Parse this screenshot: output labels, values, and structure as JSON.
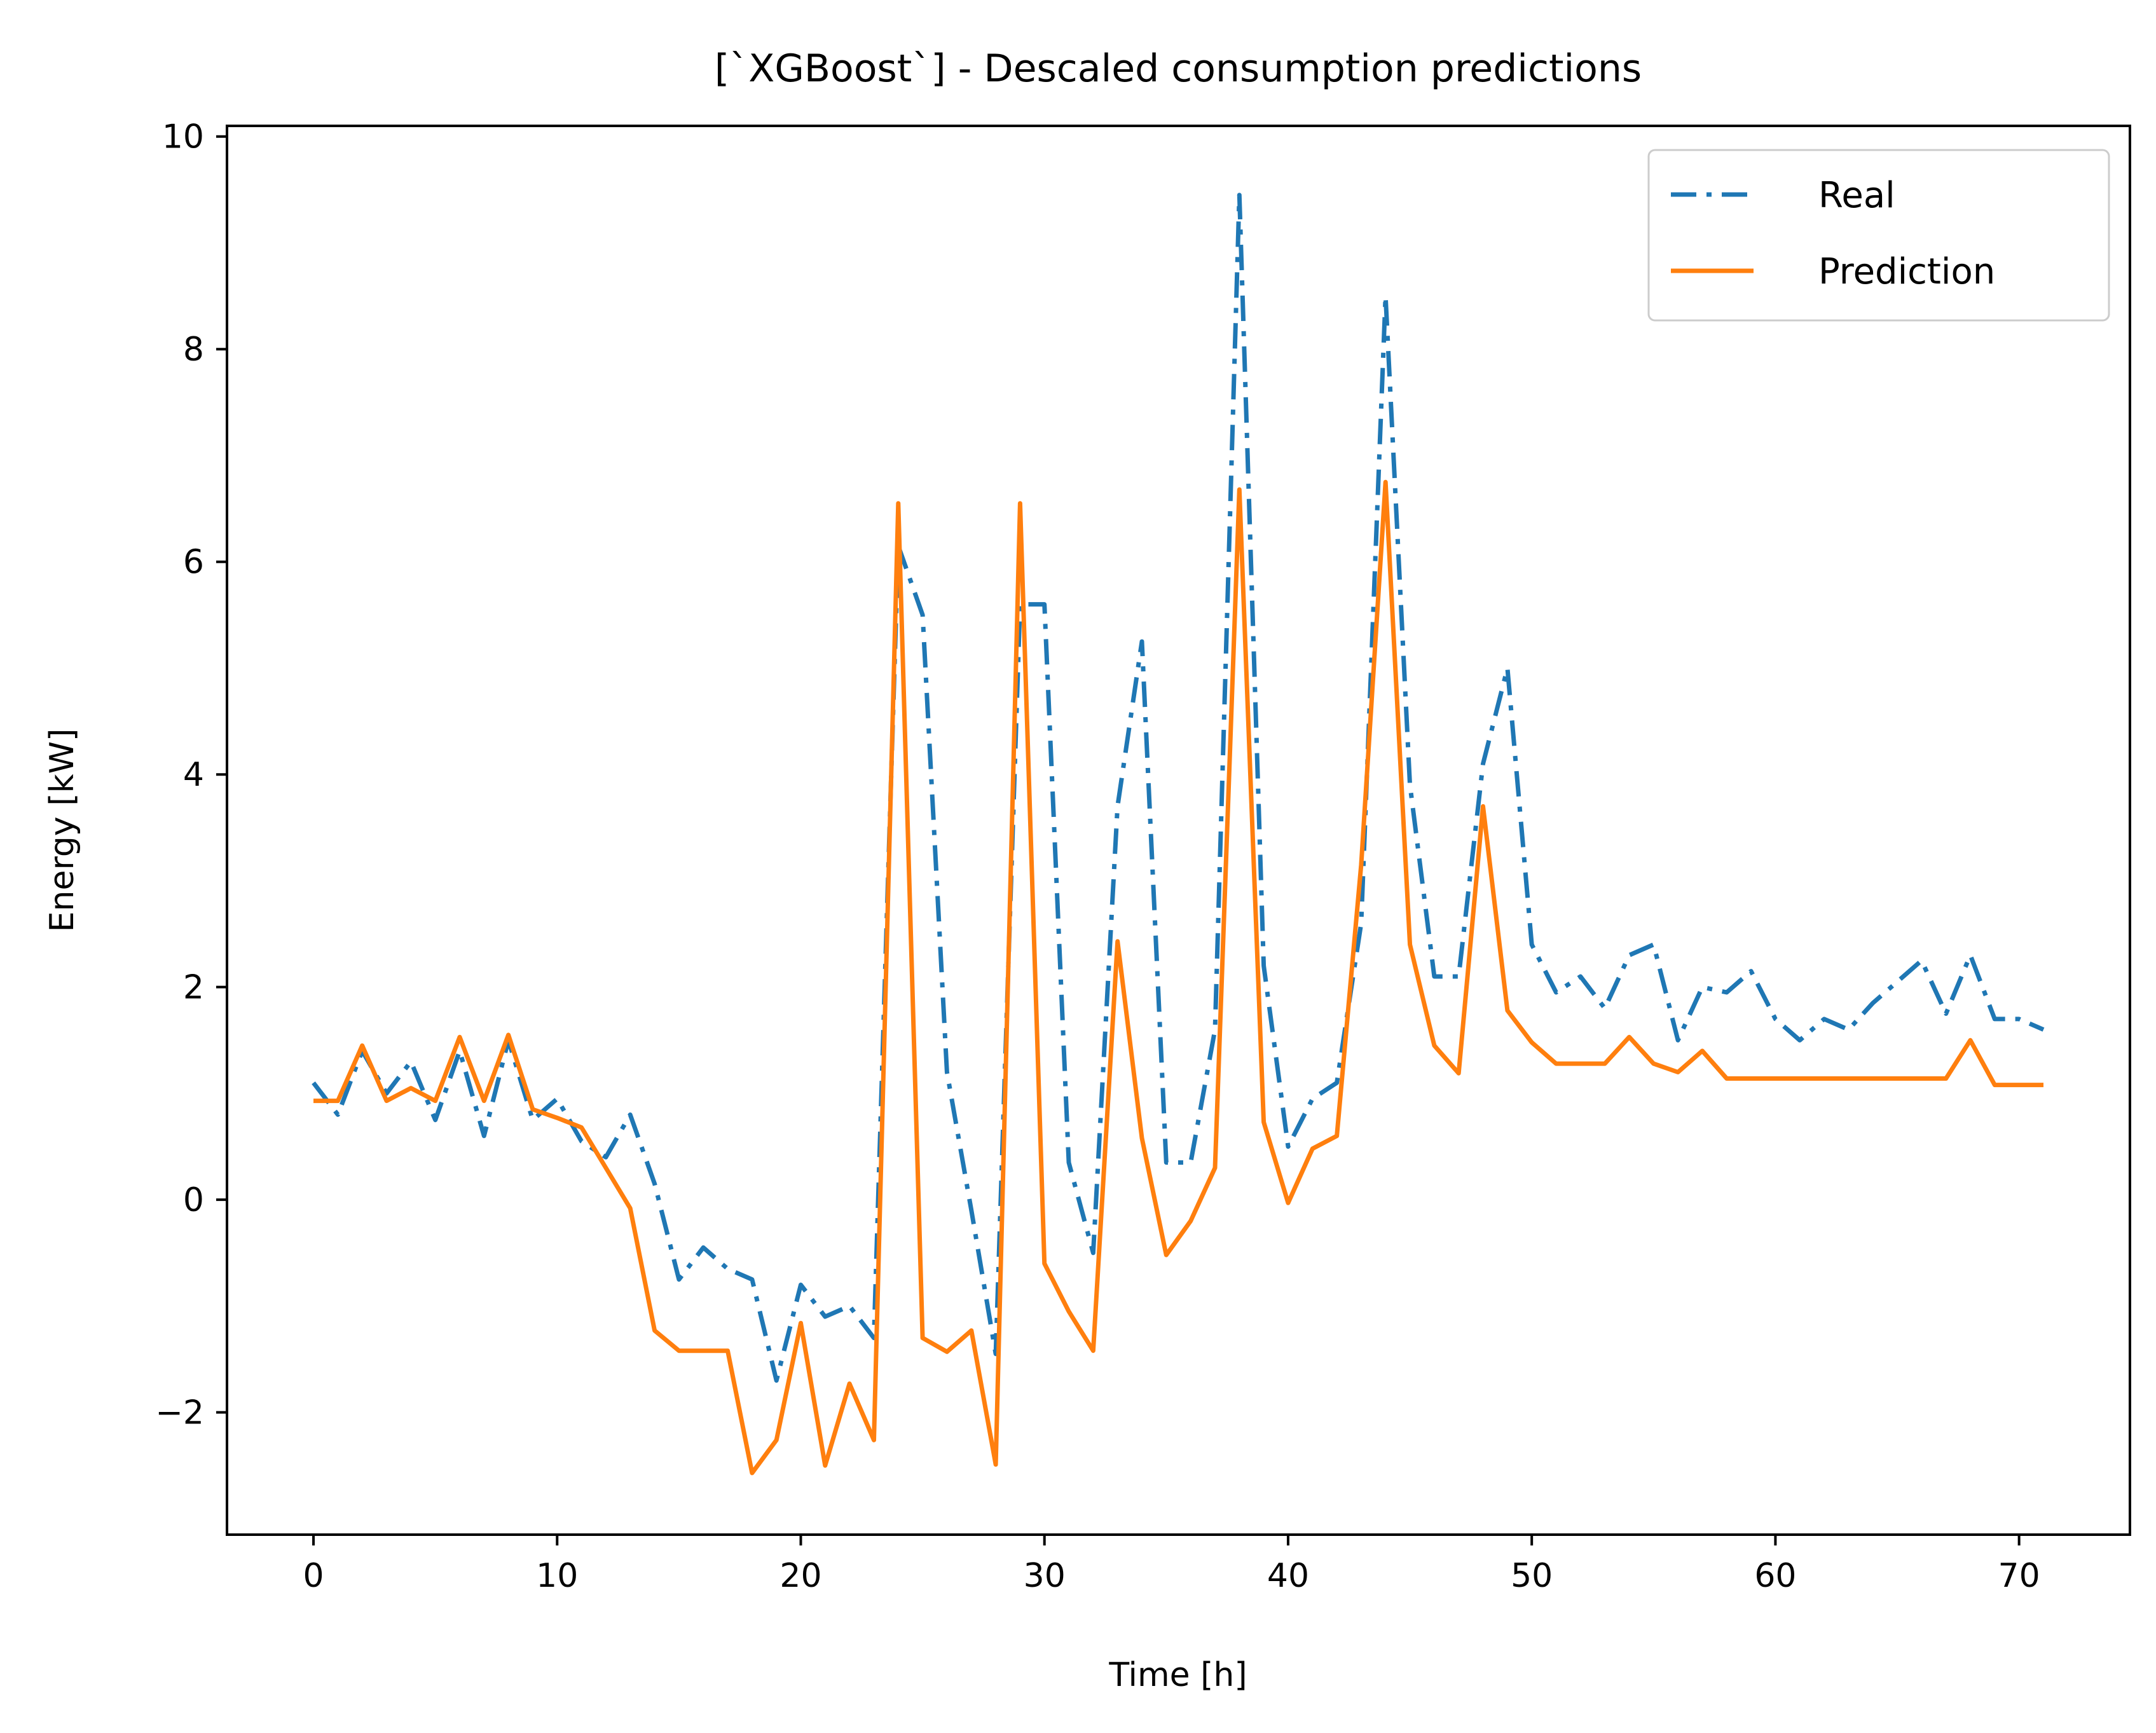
{
  "chart_data": {
    "type": "line",
    "title": "[`XGBoost`] - Descaled consumption predictions",
    "xlabel": "Time [h]",
    "ylabel": "Energy [kW]",
    "xlim": [
      -3.55,
      74.55
    ],
    "ylim": [
      -3.15,
      10.1
    ],
    "xticks": [
      0,
      10,
      20,
      30,
      40,
      50,
      60,
      70
    ],
    "xtick_labels": [
      "0",
      "10",
      "20",
      "30",
      "40",
      "50",
      "60",
      "70"
    ],
    "yticks": [
      -2,
      0,
      2,
      4,
      6,
      8,
      10
    ],
    "ytick_labels": [
      "−2",
      "0",
      "2",
      "4",
      "6",
      "8",
      "10"
    ],
    "grid": false,
    "legend_position": "top-right",
    "x": [
      0,
      1,
      2,
      3,
      4,
      5,
      6,
      7,
      8,
      9,
      10,
      11,
      12,
      13,
      14,
      15,
      16,
      17,
      18,
      19,
      20,
      21,
      22,
      23,
      24,
      25,
      26,
      27,
      28,
      29,
      30,
      31,
      32,
      33,
      34,
      35,
      36,
      37,
      38,
      39,
      40,
      41,
      42,
      43,
      44,
      45,
      46,
      47,
      48,
      49,
      50,
      51,
      52,
      53,
      54,
      55,
      56,
      57,
      58,
      59,
      60,
      61,
      62,
      63,
      64,
      65,
      66,
      67,
      68,
      69,
      70,
      71
    ],
    "series": [
      {
        "name": "Real",
        "color": "#1f77b4",
        "style": "dashdot",
        "values": [
          1.1,
          0.8,
          1.4,
          1.0,
          1.3,
          0.75,
          1.4,
          0.6,
          1.5,
          0.75,
          0.95,
          0.55,
          0.4,
          0.8,
          0.15,
          -0.75,
          -0.45,
          -0.65,
          -0.75,
          -1.7,
          -0.8,
          -1.1,
          -1.0,
          -1.3,
          6.15,
          5.5,
          1.2,
          -0.1,
          -1.45,
          5.6,
          5.6,
          0.35,
          -0.5,
          3.7,
          5.25,
          0.35,
          0.35,
          1.6,
          9.45,
          2.2,
          0.5,
          0.95,
          1.1,
          2.6,
          8.5,
          3.9,
          2.1,
          2.1,
          4.1,
          5.0,
          2.4,
          1.95,
          2.1,
          1.8,
          2.3,
          2.4,
          1.5,
          2.0,
          1.95,
          2.15,
          1.7,
          1.5,
          1.7,
          1.6,
          1.85,
          2.05,
          2.25,
          1.75,
          2.3,
          1.7,
          1.7,
          1.6
        ]
      },
      {
        "name": "Prediction",
        "color": "#ff7f0e",
        "style": "solid",
        "values": [
          0.93,
          0.93,
          1.45,
          0.93,
          1.05,
          0.93,
          1.53,
          0.93,
          1.55,
          0.85,
          0.77,
          0.68,
          0.3,
          -0.08,
          -1.23,
          -1.42,
          -1.42,
          -1.42,
          -2.57,
          -2.26,
          -1.16,
          -2.5,
          -1.73,
          -2.26,
          6.55,
          -1.3,
          -1.43,
          -1.23,
          -2.49,
          6.55,
          -0.6,
          -1.05,
          -1.42,
          2.43,
          0.58,
          -0.52,
          -0.2,
          0.3,
          6.68,
          0.73,
          -0.03,
          0.48,
          0.6,
          3.15,
          6.75,
          2.4,
          1.45,
          1.19,
          3.7,
          1.78,
          1.48,
          1.28,
          1.28,
          1.28,
          1.53,
          1.28,
          1.2,
          1.4,
          1.14,
          1.14,
          1.14,
          1.14,
          1.14,
          1.14,
          1.14,
          1.14,
          1.14,
          1.14,
          1.5,
          1.08,
          1.08,
          1.08
        ]
      }
    ]
  }
}
